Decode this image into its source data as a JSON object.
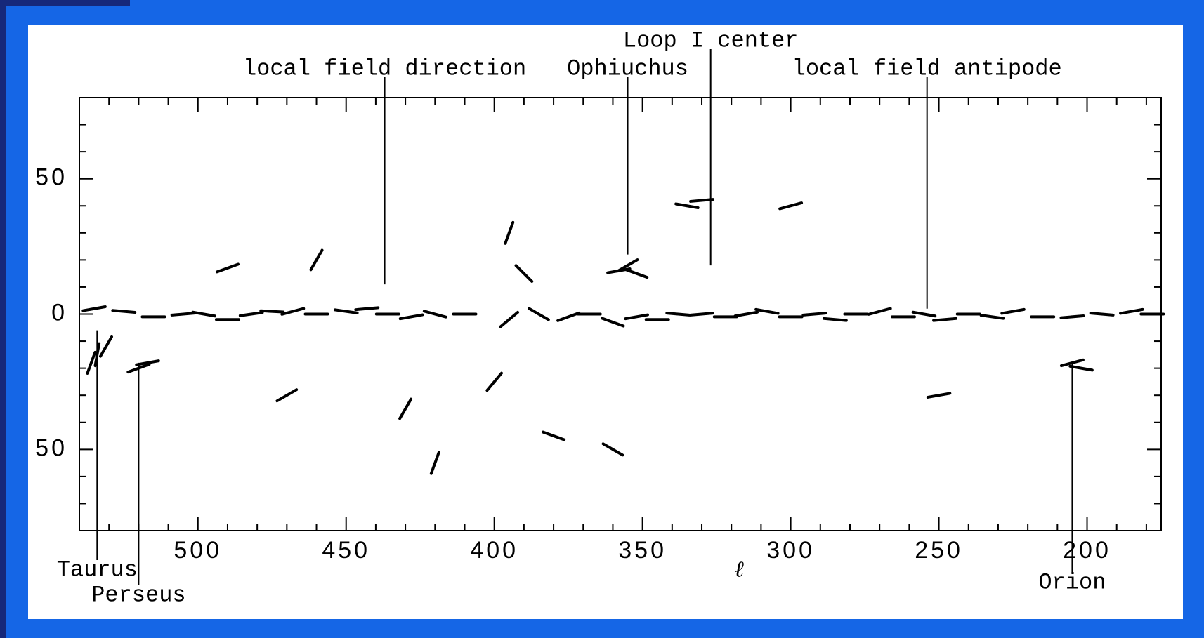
{
  "chart_data": {
    "type": "vector-map",
    "x_label": "ℓ",
    "xlim": [
      540,
      175
    ],
    "ylim": [
      -80,
      80
    ],
    "xticks": [
      500,
      450,
      400,
      350,
      300,
      250,
      200
    ],
    "yticks": [
      {
        "value": -50,
        "label": "50"
      },
      0,
      50
    ],
    "xminorticks": [
      530,
      520,
      510,
      490,
      480,
      470,
      460,
      440,
      430,
      420,
      410,
      390,
      380,
      370,
      360,
      340,
      330,
      320,
      310,
      290,
      280,
      270,
      260,
      240,
      230,
      220,
      210,
      190,
      180
    ],
    "yminorticks": [
      -70,
      -60,
      -40,
      -30,
      -20,
      -10,
      10,
      20,
      30,
      40,
      60,
      70
    ],
    "color": "#000000",
    "annotations": [
      {
        "label": "Loop I center",
        "x": 327,
        "y": 18
      },
      {
        "label": "local field direction",
        "x": 437,
        "y": 11
      },
      {
        "label": "Ophiuchus",
        "x": 355,
        "y": 22
      },
      {
        "label": "local field antipode",
        "x": 254,
        "y": 2
      },
      {
        "label": "Taurus",
        "x": 534,
        "y": -6
      },
      {
        "label": "Perseus",
        "x": 520,
        "y": -18
      },
      {
        "label": "Orion",
        "x": 205,
        "y": -18
      }
    ],
    "vectors": {
      "x": [
        535,
        525,
        515,
        505,
        498,
        490,
        482,
        475,
        468,
        460,
        450,
        443,
        436,
        428,
        420,
        410,
        395,
        385,
        375,
        368,
        360,
        352,
        345,
        338,
        330,
        322,
        315,
        308,
        300,
        292,
        285,
        278,
        270,
        262,
        255,
        248,
        240,
        232,
        225,
        215,
        205,
        195,
        185,
        178,
        534,
        531,
        536,
        520,
        517,
        355,
        352,
        358,
        205,
        202,
        490,
        460,
        395,
        390,
        330,
        335,
        470,
        430,
        400,
        380,
        300,
        250,
        420,
        360
      ],
      "y": [
        2,
        1,
        -1,
        0,
        0,
        -2,
        0,
        1,
        1,
        0,
        1,
        2,
        0,
        -1,
        0,
        0,
        -2,
        0,
        -1,
        0,
        -3,
        -1,
        -2,
        0,
        0,
        -1,
        0,
        1,
        -1,
        0,
        -2,
        0,
        1,
        -1,
        0,
        -2,
        0,
        -1,
        1,
        -1,
        -1,
        0,
        1,
        0,
        -15,
        -12,
        -18,
        -20,
        -18,
        18,
        15,
        16,
        -18,
        -20,
        17,
        20,
        30,
        15,
        42,
        40,
        -30,
        -35,
        -25,
        -45,
        40,
        -30,
        -55,
        -50
      ],
      "angle": [
        10,
        -5,
        0,
        5,
        -10,
        0,
        8,
        -3,
        15,
        0,
        -8,
        5,
        0,
        10,
        -15,
        0,
        40,
        -30,
        20,
        0,
        -20,
        10,
        0,
        -5,
        5,
        0,
        10,
        -10,
        0,
        5,
        -5,
        0,
        15,
        0,
        -10,
        5,
        0,
        -8,
        10,
        0,
        5,
        -5,
        10,
        0,
        80,
        60,
        70,
        20,
        10,
        30,
        -20,
        10,
        15,
        -10,
        20,
        60,
        70,
        -45,
        5,
        -10,
        30,
        60,
        50,
        -20,
        15,
        10,
        70,
        -30
      ]
    }
  }
}
